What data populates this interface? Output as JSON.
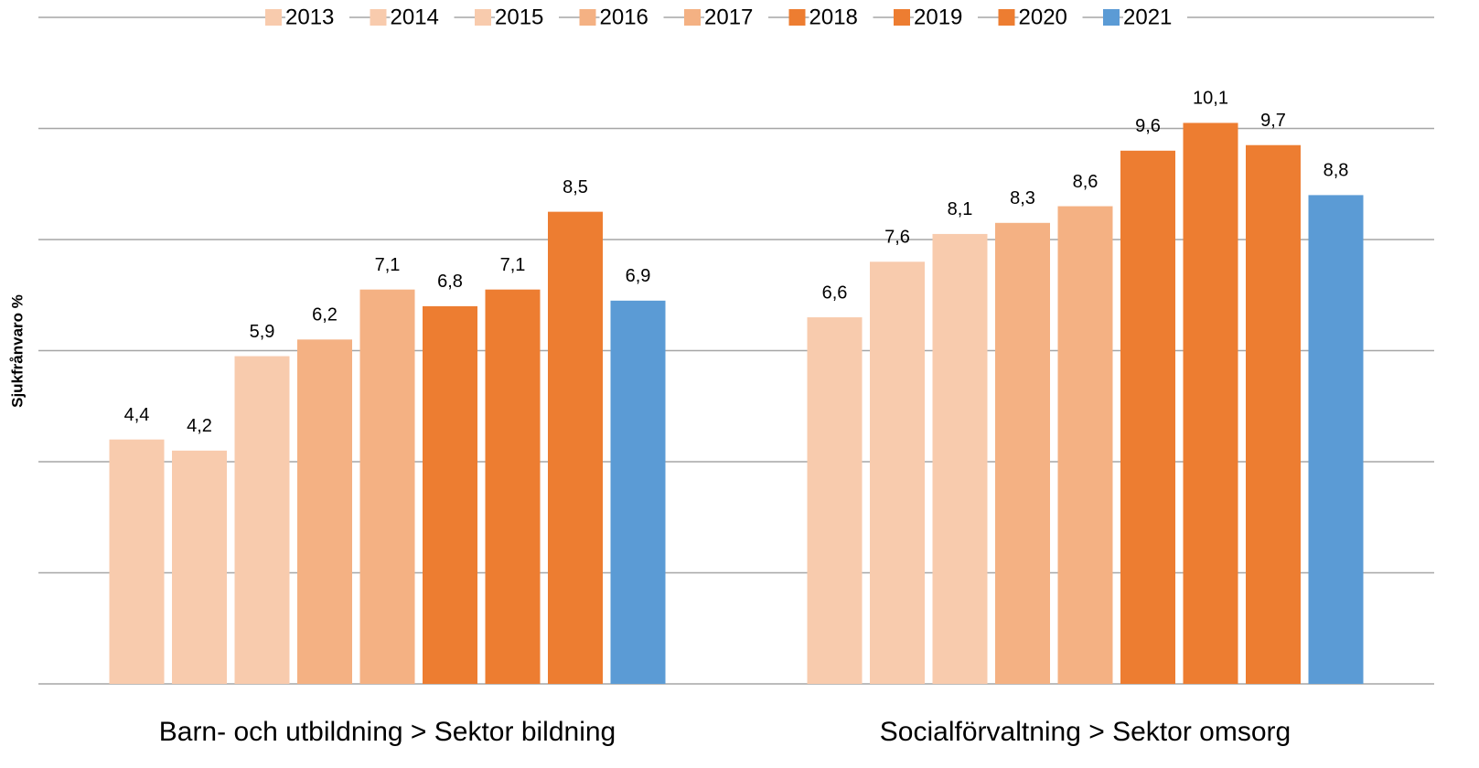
{
  "chart_data": {
    "type": "bar",
    "y_label": "Sjukfrånvaro %",
    "categories": [
      "Barn- och utbildning > Sektor bildning",
      "Socialförvaltning > Sektor omsorg"
    ],
    "series": [
      {
        "name": "2013",
        "color": "#f8cbad",
        "values": [
          4.4,
          6.6
        ],
        "value_labels": [
          "4,4",
          "6,6"
        ]
      },
      {
        "name": "2014",
        "color": "#f8cbad",
        "values": [
          4.2,
          7.6
        ],
        "value_labels": [
          "4,2",
          "7,6"
        ]
      },
      {
        "name": "2015",
        "color": "#f8cbad",
        "values": [
          5.9,
          8.1
        ],
        "value_labels": [
          "5,9",
          "8,1"
        ]
      },
      {
        "name": "2016",
        "color": "#f4b183",
        "values": [
          6.2,
          8.3
        ],
        "value_labels": [
          "6,2",
          "8,3"
        ]
      },
      {
        "name": "2017",
        "color": "#f4b183",
        "values": [
          7.1,
          8.6
        ],
        "value_labels": [
          "7,1",
          "8,6"
        ]
      },
      {
        "name": "2018",
        "color": "#ed7d31",
        "values": [
          6.8,
          9.6
        ],
        "value_labels": [
          "6,8",
          "9,6"
        ]
      },
      {
        "name": "2019",
        "color": "#ed7d31",
        "values": [
          7.1,
          10.1
        ],
        "value_labels": [
          "7,1",
          "10,1"
        ]
      },
      {
        "name": "2020",
        "color": "#ed7d31",
        "values": [
          8.5,
          9.7
        ],
        "value_labels": [
          "8,5",
          "9,7"
        ]
      },
      {
        "name": "2021",
        "color": "#5b9bd5",
        "values": [
          6.9,
          8.8
        ],
        "value_labels": [
          "6,9",
          "8,8"
        ]
      }
    ],
    "ylim": [
      0,
      12
    ],
    "yticks": [
      0,
      2,
      4,
      6,
      8,
      10,
      12
    ],
    "grid": true,
    "legend": "top"
  }
}
